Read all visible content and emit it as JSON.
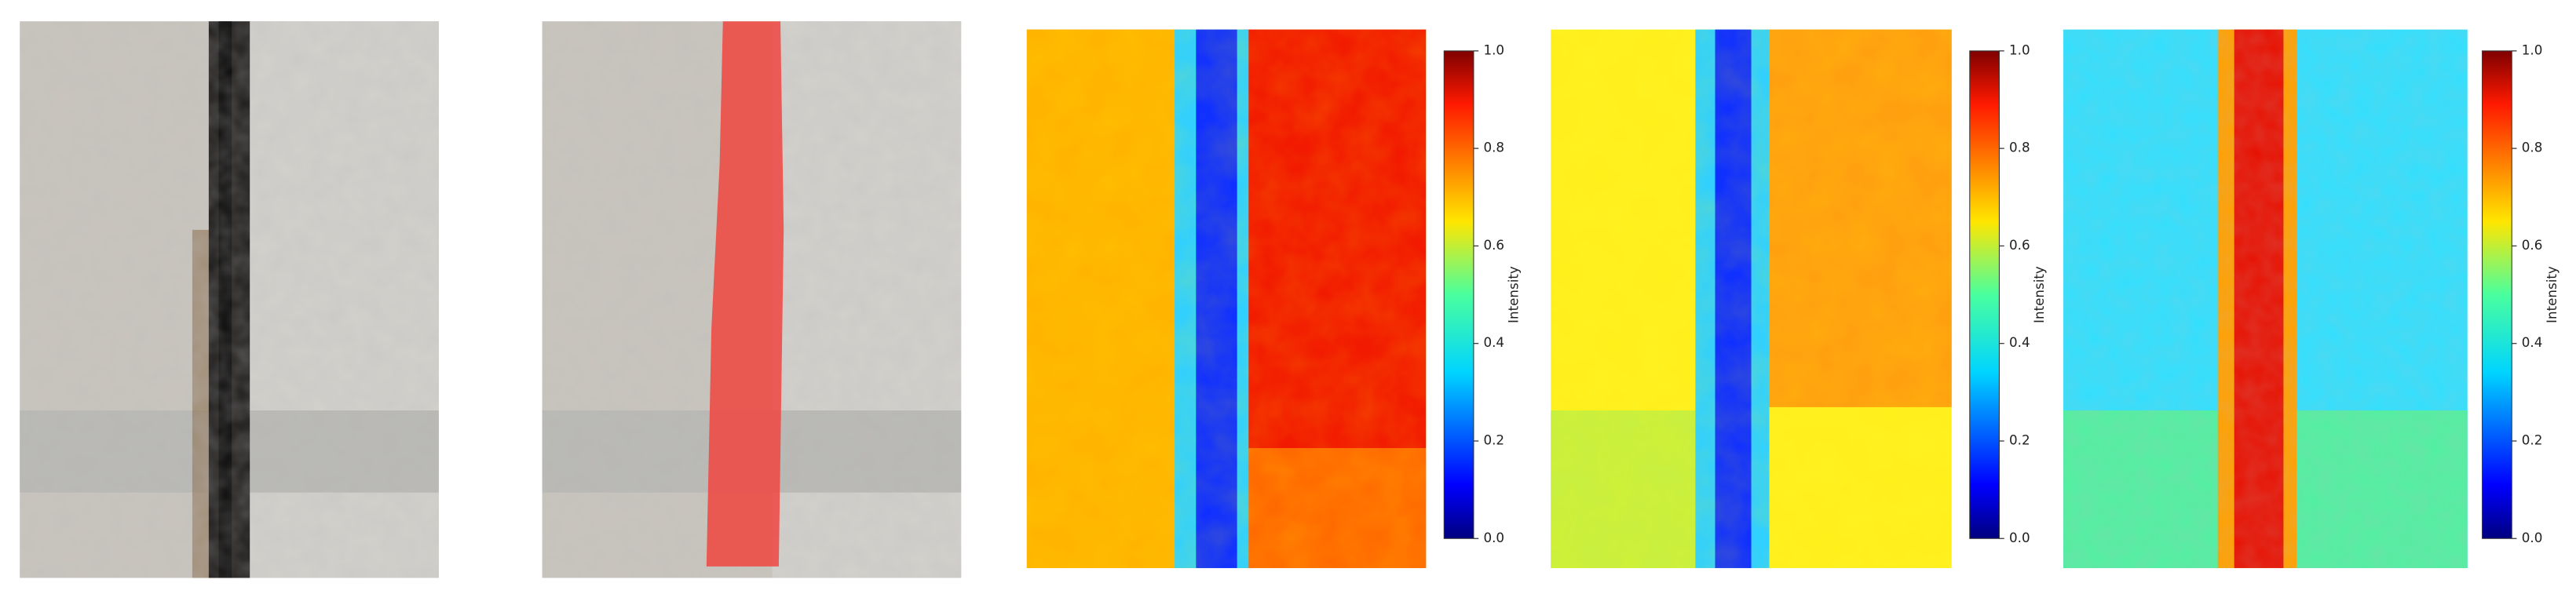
{
  "colorbars": [
    {
      "label": "Intensity",
      "ticks": [
        {
          "value": 0,
          "label": "0.0"
        },
        {
          "value": 0.2,
          "label": "0.2"
        },
        {
          "value": 0.4,
          "label": "0.4"
        },
        {
          "value": 0.6,
          "label": "0.6"
        },
        {
          "value": 0.8,
          "label": "0.8"
        },
        {
          "value": 1,
          "label": "1.0"
        }
      ]
    },
    {
      "label": "Intensity",
      "ticks": [
        {
          "value": 0,
          "label": "0.0"
        },
        {
          "value": 0.2,
          "label": "0.2"
        },
        {
          "value": 0.4,
          "label": "0.4"
        },
        {
          "value": 0.6,
          "label": "0.6"
        },
        {
          "value": 0.8,
          "label": "0.8"
        },
        {
          "value": 1,
          "label": "1.0"
        }
      ]
    },
    {
      "label": "Intensity",
      "ticks": [
        {
          "value": 0,
          "label": "0.0"
        },
        {
          "value": 0.2,
          "label": "0.2"
        },
        {
          "value": 0.4,
          "label": "0.4"
        },
        {
          "value": 0.6,
          "label": "0.6"
        },
        {
          "value": 0.8,
          "label": "0.8"
        },
        {
          "value": 1,
          "label": "1.0"
        }
      ]
    }
  ]
}
